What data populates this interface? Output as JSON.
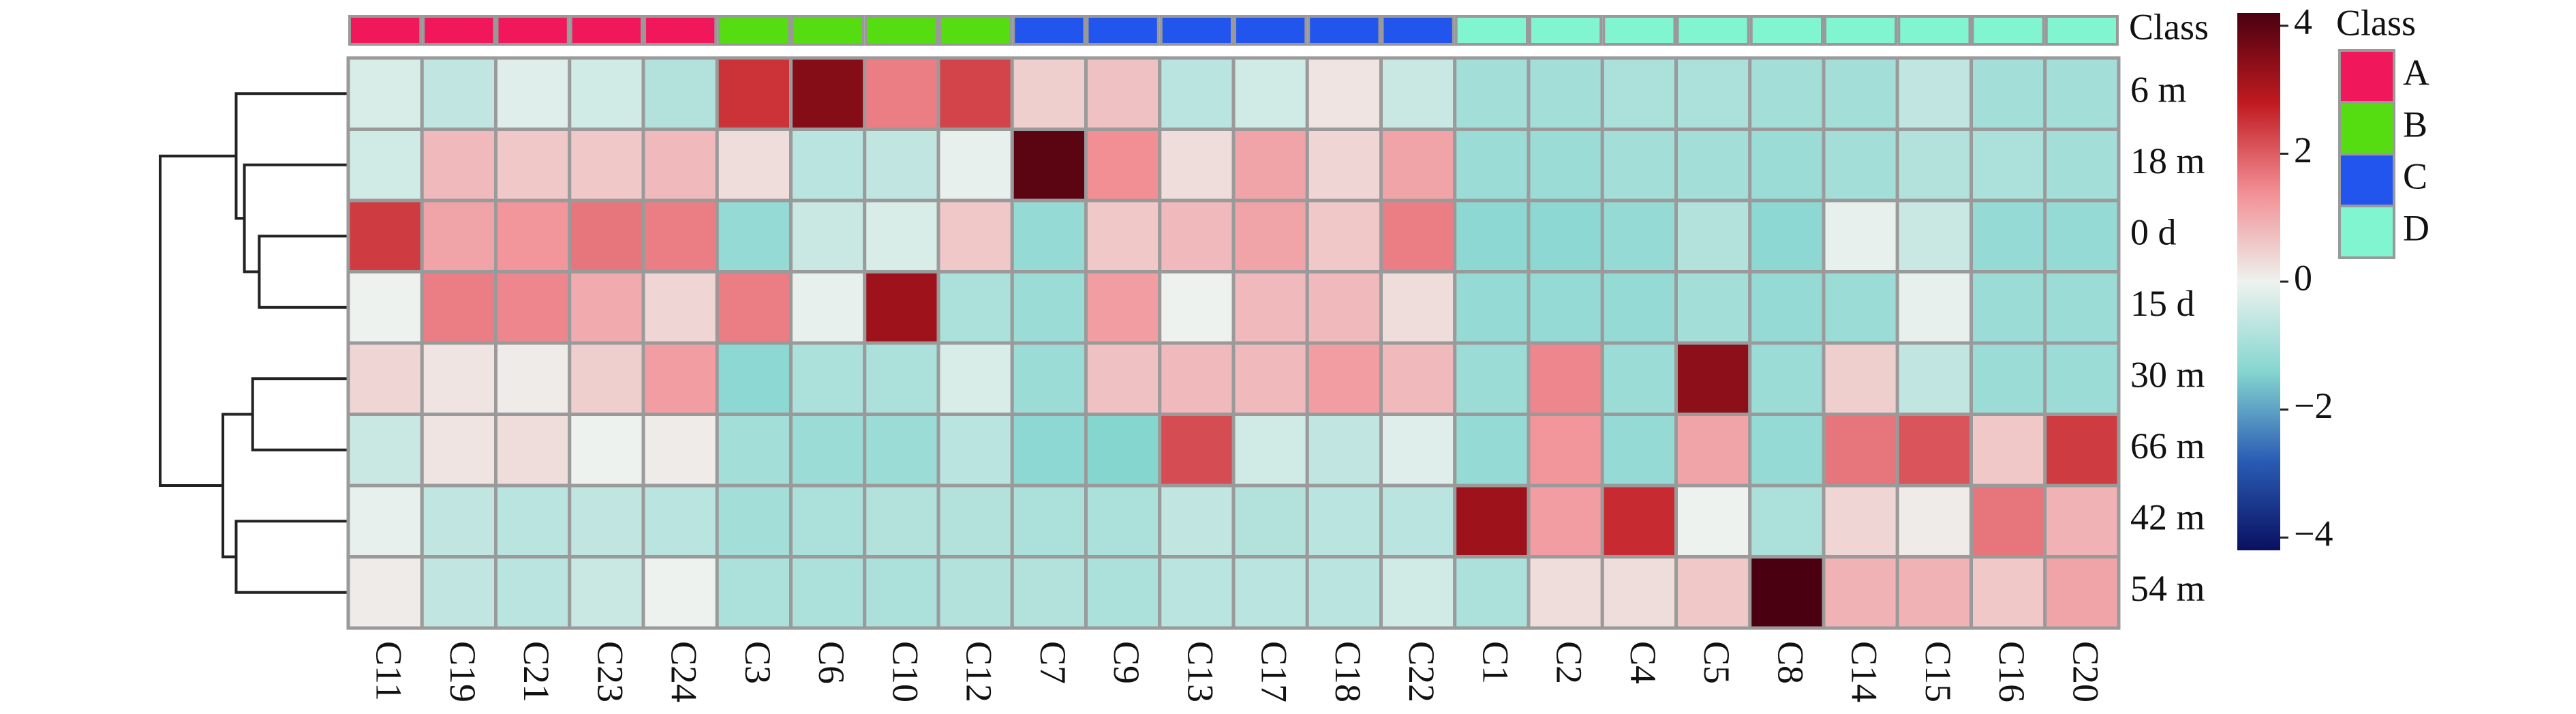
{
  "chart_data": {
    "type": "heatmap",
    "x": [
      "C11",
      "C19",
      "C21",
      "C23",
      "C24",
      "C3",
      "C6",
      "C10",
      "C12",
      "C7",
      "C9",
      "C13",
      "C17",
      "C18",
      "C22",
      "C1",
      "C2",
      "C4",
      "C5",
      "C8",
      "C14",
      "C15",
      "C16",
      "C20"
    ],
    "y": [
      "6 m",
      "18 m",
      "0 d",
      "15 d",
      "30 m",
      "66 m",
      "42 m",
      "54 m"
    ],
    "values": [
      [
        -0.3,
        -0.6,
        -0.2,
        -0.4,
        -0.8,
        2.5,
        3.5,
        1.6,
        2.3,
        0.5,
        0.7,
        -0.7,
        -0.4,
        0.2,
        -0.5,
        -1,
        -1,
        -0.9,
        -0.9,
        -1,
        -1,
        -0.6,
        -1,
        -1
      ],
      [
        -0.4,
        0.8,
        0.6,
        0.6,
        0.8,
        0.3,
        -0.7,
        -0.6,
        -0.1,
        4,
        1.4,
        0.3,
        1.1,
        0.4,
        1.1,
        -1.1,
        -1.1,
        -1,
        -1,
        -1.1,
        -1,
        -0.8,
        -0.9,
        -1
      ],
      [
        2.4,
        1.1,
        1.3,
        1.7,
        1.6,
        -1.2,
        -0.5,
        -0.3,
        0.6,
        -1.2,
        0.6,
        0.8,
        1.1,
        0.6,
        1.6,
        -1.3,
        -1.3,
        -1.2,
        -0.8,
        -1.3,
        -0.1,
        -0.5,
        -1.2,
        -1.2
      ],
      [
        0,
        1.6,
        1.5,
        1,
        0.4,
        1.6,
        -0.1,
        3.2,
        -0.9,
        -1.1,
        1.2,
        0,
        0.8,
        0.8,
        0.3,
        -1.2,
        -1.2,
        -1.2,
        -1,
        -1.2,
        -1.1,
        -0.1,
        -1.1,
        -1.1
      ],
      [
        0.4,
        0.2,
        0.1,
        0.5,
        1.2,
        -1.3,
        -0.9,
        -0.9,
        -0.3,
        -1.1,
        0.7,
        0.8,
        0.8,
        1.2,
        0.8,
        -1.1,
        1.5,
        -1.1,
        3.4,
        -1.1,
        0.5,
        -0.6,
        -1.1,
        -1.1
      ],
      [
        -0.5,
        0.2,
        0.3,
        0,
        0.1,
        -1,
        -1.1,
        -1.1,
        -0.7,
        -1.3,
        -1.4,
        2.2,
        -0.4,
        -0.6,
        -0.2,
        -1.2,
        1.3,
        -1.2,
        1.1,
        -1.2,
        1.7,
        2.1,
        0.6,
        2.4
      ],
      [
        -0.1,
        -0.6,
        -0.7,
        -0.6,
        -0.7,
        -1,
        -0.9,
        -0.8,
        -0.8,
        -0.9,
        -0.9,
        -0.6,
        -0.8,
        -0.7,
        -0.7,
        3.2,
        1.2,
        2.6,
        0,
        -0.9,
        0.4,
        0.1,
        1.7,
        0.9
      ],
      [
        0.1,
        -0.6,
        -0.7,
        -0.5,
        0,
        -0.9,
        -0.9,
        -0.9,
        -0.8,
        -0.8,
        -0.9,
        -0.7,
        -0.7,
        -0.7,
        -0.4,
        -0.9,
        0.3,
        0.3,
        0.6,
        4.5,
        0.9,
        0.9,
        0.6,
        1.1
      ]
    ],
    "annotation_label": "Class",
    "column_classes": [
      "A",
      "A",
      "A",
      "A",
      "A",
      "B",
      "B",
      "B",
      "B",
      "C",
      "C",
      "C",
      "C",
      "C",
      "C",
      "D",
      "D",
      "D",
      "D",
      "D",
      "D",
      "D",
      "D",
      "D"
    ],
    "legend_title": "Class",
    "classes": [
      {
        "name": "A",
        "color": "#f0185a"
      },
      {
        "name": "B",
        "color": "#55dd11"
      },
      {
        "name": "C",
        "color": "#2255ee"
      },
      {
        "name": "D",
        "color": "#80f5d0"
      }
    ],
    "zlim": [
      -4.2,
      4.2
    ],
    "zticks": [
      4,
      2,
      0,
      {
        "value": -2,
        "label": "−2"
      },
      {
        "value": -4,
        "label": "−4"
      }
    ],
    "colormap": [
      "#0a1060",
      "#2a5cb5",
      "#86d6d0",
      "#eef2ee",
      "#f28f95",
      "#c01a20",
      "#4a0010"
    ]
  }
}
